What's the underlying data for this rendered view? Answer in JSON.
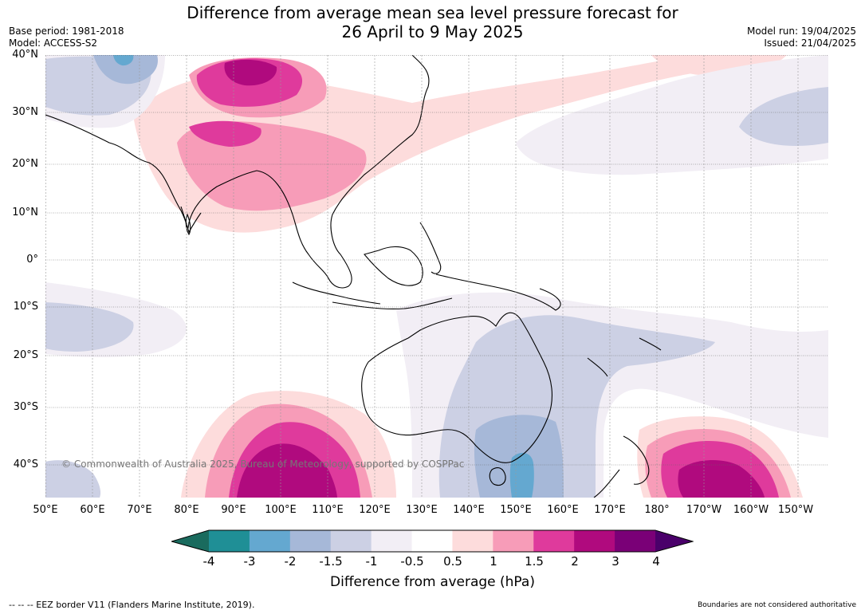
{
  "title_line1": "Difference from average mean sea level pressure forecast for",
  "title_line2": "26 April to 9 May 2025",
  "meta": {
    "base_period": "Base period: 1981-2018",
    "model": "Model: ACCESS-S2",
    "model_run": "Model run: 19/04/2025",
    "issued": "Issued: 21/04/2025"
  },
  "lat_labels": [
    "40°N",
    "30°N",
    "20°N",
    "10°N",
    "0°",
    "10°S",
    "20°S",
    "30°S",
    "40°S"
  ],
  "lon_labels": [
    "50°E",
    "60°E",
    "70°E",
    "80°E",
    "90°E",
    "100°E",
    "110°E",
    "120°E",
    "130°E",
    "140°E",
    "150°E",
    "160°E",
    "170°E",
    "180°",
    "170°W",
    "160°W",
    "150°W"
  ],
  "copyright": "© Commonwealth of Australia 2025, Bureau of Meteorology, supported by COSPPac",
  "colorbar": {
    "title": "Difference from average (hPa)",
    "tick_labels": [
      "-4",
      "-3",
      "-2",
      "-1.5",
      "-1",
      "-0.5",
      "0.5",
      "1",
      "1.5",
      "2",
      "3",
      "4"
    ],
    "colors": [
      "#1a6b5e",
      "#1f8f96",
      "#64a8d0",
      "#a6b8d8",
      "#ccd0e4",
      "#f2eef5",
      "#ffffff",
      "#fddcdc",
      "#f79cb8",
      "#df3a9c",
      "#b00a7e",
      "#7a0077",
      "#4a006a"
    ]
  },
  "footer_left": "--  --  -- EEZ border V11 (Flanders Marine Institute, 2019).",
  "footer_right": "Boundaries are not considered authoritative"
}
